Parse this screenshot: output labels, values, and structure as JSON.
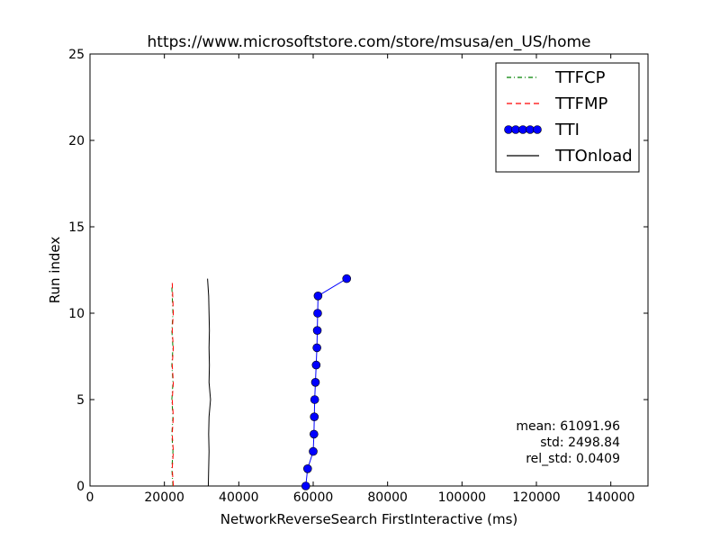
{
  "chart_data": {
    "type": "line",
    "title": "https://www.microsoftstore.com/store/msusa/en_US/home",
    "xlabel": "NetworkReverseSearch FirstInteractive (ms)",
    "ylabel": "Run index",
    "xlim": [
      0,
      150000
    ],
    "ylim": [
      0,
      25
    ],
    "xticks": [
      0,
      20000,
      40000,
      60000,
      80000,
      100000,
      120000,
      140000
    ],
    "xtick_labels": [
      "0",
      "20000",
      "40000",
      "60000",
      "80000",
      "100000",
      "120000",
      "140000"
    ],
    "yticks": [
      0,
      5,
      10,
      15,
      20,
      25
    ],
    "ytick_labels": [
      "0",
      "5",
      "10",
      "15",
      "20",
      "25"
    ],
    "grid": false,
    "legend_position": "top-right",
    "series": [
      {
        "name": "TTFCP",
        "color": "#008000",
        "style": "dash-dot",
        "x": [
          22300,
          22000,
          22300,
          22000,
          22300,
          22000,
          22300,
          22000,
          22300,
          22000,
          22300,
          22000
        ],
        "y": [
          0,
          1,
          2,
          3,
          4,
          5,
          6,
          7,
          8,
          9,
          10,
          11.5
        ]
      },
      {
        "name": "TTFMP",
        "color": "#ff0000",
        "style": "dashed",
        "x": [
          22400,
          22100,
          22400,
          22100,
          22400,
          22100,
          22400,
          22100,
          22400,
          22100,
          22400,
          22100
        ],
        "y": [
          0,
          1,
          2,
          3,
          4,
          5,
          6,
          7,
          8,
          9,
          10,
          11.8
        ]
      },
      {
        "name": "TTI",
        "color": "#0000ff",
        "style": "solid-markers",
        "x": [
          58000,
          58500,
          60000,
          60200,
          60300,
          60400,
          60600,
          60800,
          61000,
          61100,
          61200,
          61300,
          69000
        ],
        "y": [
          0,
          1,
          2,
          3,
          4,
          5,
          6,
          7,
          8,
          9,
          10,
          11,
          12
        ]
      },
      {
        "name": "TTOnload",
        "color": "#000000",
        "style": "solid",
        "x": [
          31800,
          31900,
          32000,
          31900,
          32000,
          32400,
          32000,
          32100,
          32000,
          32100,
          32000,
          31900,
          31600
        ],
        "y": [
          0,
          1,
          2,
          3,
          4,
          5,
          6,
          7,
          8,
          9,
          10,
          11,
          12
        ]
      }
    ],
    "annotations": [
      "mean: 61091.96",
      "std: 2498.84",
      "rel_std: 0.0409"
    ]
  }
}
